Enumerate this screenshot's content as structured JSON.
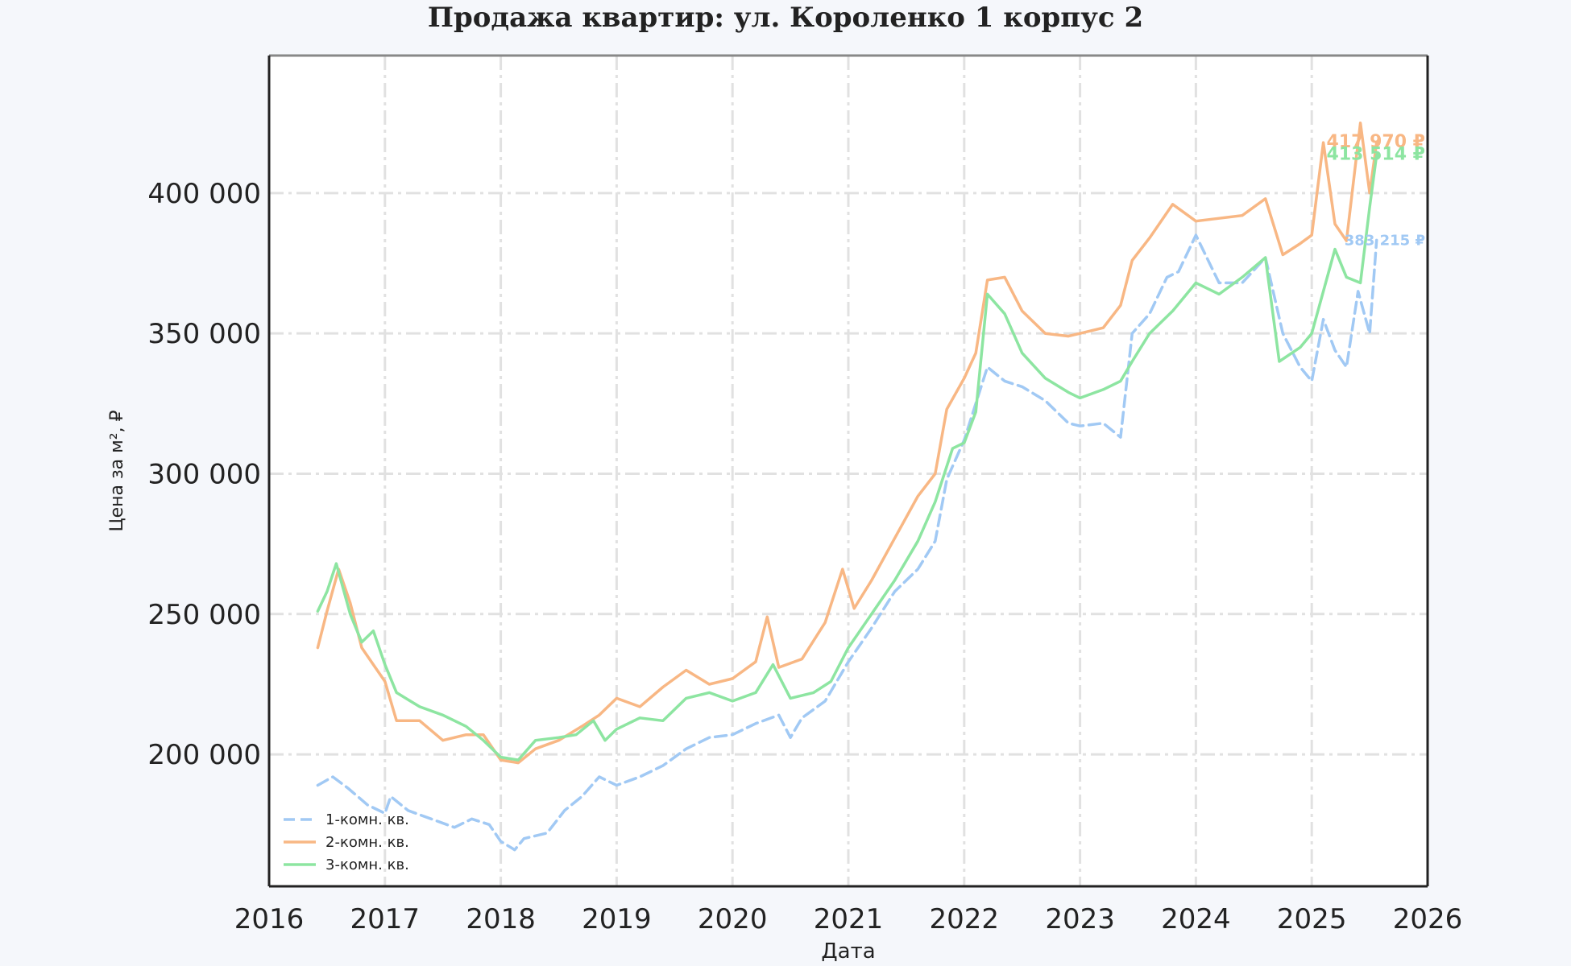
{
  "chart_data": {
    "type": "line",
    "title": "Продажа квартир: ул. Короленко 1 корпус 2",
    "xlabel": "Дата",
    "ylabel": "Цена за м², ₽",
    "xlim": [
      2016,
      2026
    ],
    "ylim": [
      153000,
      449000
    ],
    "x_ticks": [
      2016,
      2017,
      2018,
      2019,
      2020,
      2021,
      2022,
      2023,
      2024,
      2025,
      2026
    ],
    "y_ticks": [
      200000,
      250000,
      300000,
      350000,
      400000
    ],
    "y_tick_labels": [
      "200 000",
      "250 000",
      "300 000",
      "350 000",
      "400 000"
    ],
    "grid": true,
    "legend_position": "lower-left",
    "series": [
      {
        "name": "1-комн. кв.",
        "color": "#a1c9f4",
        "style": "dashed",
        "end_label": "383 215 ₽",
        "points": [
          [
            2016.42,
            189000
          ],
          [
            2016.55,
            192000
          ],
          [
            2016.68,
            188000
          ],
          [
            2016.85,
            182000
          ],
          [
            2017.0,
            179000
          ],
          [
            2017.05,
            185000
          ],
          [
            2017.2,
            180000
          ],
          [
            2017.4,
            177000
          ],
          [
            2017.6,
            174000
          ],
          [
            2017.75,
            177000
          ],
          [
            2017.9,
            175000
          ],
          [
            2018.0,
            169000
          ],
          [
            2018.12,
            166000
          ],
          [
            2018.2,
            170000
          ],
          [
            2018.4,
            172000
          ],
          [
            2018.55,
            180000
          ],
          [
            2018.7,
            185000
          ],
          [
            2018.85,
            192000
          ],
          [
            2019.0,
            189000
          ],
          [
            2019.2,
            192000
          ],
          [
            2019.4,
            196000
          ],
          [
            2019.6,
            202000
          ],
          [
            2019.8,
            206000
          ],
          [
            2020.0,
            207000
          ],
          [
            2020.2,
            211000
          ],
          [
            2020.4,
            214000
          ],
          [
            2020.5,
            206000
          ],
          [
            2020.6,
            213000
          ],
          [
            2020.8,
            219000
          ],
          [
            2021.0,
            233000
          ],
          [
            2021.2,
            245000
          ],
          [
            2021.4,
            258000
          ],
          [
            2021.6,
            266000
          ],
          [
            2021.75,
            276000
          ],
          [
            2021.85,
            298000
          ],
          [
            2022.0,
            312000
          ],
          [
            2022.1,
            325000
          ],
          [
            2022.2,
            338000
          ],
          [
            2022.35,
            333000
          ],
          [
            2022.5,
            331000
          ],
          [
            2022.7,
            326000
          ],
          [
            2022.9,
            318000
          ],
          [
            2023.0,
            317000
          ],
          [
            2023.2,
            318000
          ],
          [
            2023.35,
            313000
          ],
          [
            2023.45,
            350000
          ],
          [
            2023.6,
            357000
          ],
          [
            2023.75,
            370000
          ],
          [
            2023.85,
            372000
          ],
          [
            2024.0,
            385000
          ],
          [
            2024.2,
            368000
          ],
          [
            2024.4,
            368000
          ],
          [
            2024.6,
            377000
          ],
          [
            2024.75,
            350000
          ],
          [
            2024.9,
            338000
          ],
          [
            2025.0,
            333000
          ],
          [
            2025.1,
            355000
          ],
          [
            2025.2,
            344000
          ],
          [
            2025.3,
            338000
          ],
          [
            2025.4,
            365000
          ],
          [
            2025.5,
            350000
          ],
          [
            2025.56,
            383215
          ]
        ]
      },
      {
        "name": "2-комн. кв.",
        "color": "#f8b784",
        "style": "solid",
        "end_label": "417 970 ₽",
        "points": [
          [
            2016.42,
            238000
          ],
          [
            2016.5,
            251000
          ],
          [
            2016.6,
            266000
          ],
          [
            2016.7,
            254000
          ],
          [
            2016.8,
            238000
          ],
          [
            2016.9,
            232000
          ],
          [
            2017.0,
            226000
          ],
          [
            2017.1,
            212000
          ],
          [
            2017.3,
            212000
          ],
          [
            2017.5,
            205000
          ],
          [
            2017.7,
            207000
          ],
          [
            2017.85,
            207000
          ],
          [
            2018.0,
            198000
          ],
          [
            2018.15,
            197000
          ],
          [
            2018.3,
            202000
          ],
          [
            2018.5,
            205000
          ],
          [
            2018.7,
            210000
          ],
          [
            2018.85,
            214000
          ],
          [
            2019.0,
            220000
          ],
          [
            2019.2,
            217000
          ],
          [
            2019.4,
            224000
          ],
          [
            2019.6,
            230000
          ],
          [
            2019.8,
            225000
          ],
          [
            2020.0,
            227000
          ],
          [
            2020.2,
            233000
          ],
          [
            2020.3,
            249000
          ],
          [
            2020.4,
            231000
          ],
          [
            2020.6,
            234000
          ],
          [
            2020.8,
            247000
          ],
          [
            2020.95,
            266000
          ],
          [
            2021.05,
            252000
          ],
          [
            2021.2,
            262000
          ],
          [
            2021.4,
            277000
          ],
          [
            2021.6,
            292000
          ],
          [
            2021.75,
            300000
          ],
          [
            2021.85,
            323000
          ],
          [
            2022.0,
            334000
          ],
          [
            2022.1,
            343000
          ],
          [
            2022.2,
            369000
          ],
          [
            2022.35,
            370000
          ],
          [
            2022.5,
            358000
          ],
          [
            2022.7,
            350000
          ],
          [
            2022.9,
            349000
          ],
          [
            2023.0,
            350000
          ],
          [
            2023.2,
            352000
          ],
          [
            2023.35,
            360000
          ],
          [
            2023.45,
            376000
          ],
          [
            2023.6,
            384000
          ],
          [
            2023.8,
            396000
          ],
          [
            2024.0,
            390000
          ],
          [
            2024.2,
            391000
          ],
          [
            2024.4,
            392000
          ],
          [
            2024.6,
            398000
          ],
          [
            2024.75,
            378000
          ],
          [
            2024.9,
            382000
          ],
          [
            2025.0,
            385000
          ],
          [
            2025.1,
            418000
          ],
          [
            2025.2,
            389000
          ],
          [
            2025.3,
            383000
          ],
          [
            2025.42,
            425000
          ],
          [
            2025.5,
            400000
          ],
          [
            2025.56,
            417970
          ]
        ]
      },
      {
        "name": "3-комн. кв.",
        "color": "#8de5a1",
        "style": "solid",
        "end_label": "413 514 ₽",
        "points": [
          [
            2016.42,
            251000
          ],
          [
            2016.5,
            258000
          ],
          [
            2016.58,
            268000
          ],
          [
            2016.7,
            250000
          ],
          [
            2016.8,
            240000
          ],
          [
            2016.9,
            244000
          ],
          [
            2017.0,
            232000
          ],
          [
            2017.1,
            222000
          ],
          [
            2017.3,
            217000
          ],
          [
            2017.5,
            214000
          ],
          [
            2017.7,
            210000
          ],
          [
            2017.85,
            205000
          ],
          [
            2018.0,
            199000
          ],
          [
            2018.15,
            198000
          ],
          [
            2018.3,
            205000
          ],
          [
            2018.5,
            206000
          ],
          [
            2018.65,
            207000
          ],
          [
            2018.8,
            212000
          ],
          [
            2018.9,
            205000
          ],
          [
            2019.0,
            209000
          ],
          [
            2019.2,
            213000
          ],
          [
            2019.4,
            212000
          ],
          [
            2019.6,
            220000
          ],
          [
            2019.8,
            222000
          ],
          [
            2020.0,
            219000
          ],
          [
            2020.2,
            222000
          ],
          [
            2020.35,
            232000
          ],
          [
            2020.5,
            220000
          ],
          [
            2020.7,
            222000
          ],
          [
            2020.85,
            226000
          ],
          [
            2021.0,
            238000
          ],
          [
            2021.2,
            250000
          ],
          [
            2021.4,
            262000
          ],
          [
            2021.6,
            276000
          ],
          [
            2021.75,
            290000
          ],
          [
            2021.9,
            309000
          ],
          [
            2022.0,
            311000
          ],
          [
            2022.1,
            322000
          ],
          [
            2022.2,
            364000
          ],
          [
            2022.35,
            357000
          ],
          [
            2022.5,
            343000
          ],
          [
            2022.7,
            334000
          ],
          [
            2022.9,
            329000
          ],
          [
            2023.0,
            327000
          ],
          [
            2023.2,
            330000
          ],
          [
            2023.35,
            333000
          ],
          [
            2023.45,
            340000
          ],
          [
            2023.6,
            350000
          ],
          [
            2023.8,
            358000
          ],
          [
            2024.0,
            368000
          ],
          [
            2024.2,
            364000
          ],
          [
            2024.4,
            370000
          ],
          [
            2024.6,
            377000
          ],
          [
            2024.72,
            340000
          ],
          [
            2024.9,
            345000
          ],
          [
            2025.0,
            350000
          ],
          [
            2025.1,
            365000
          ],
          [
            2025.2,
            380000
          ],
          [
            2025.3,
            370000
          ],
          [
            2025.42,
            368000
          ],
          [
            2025.5,
            395000
          ],
          [
            2025.56,
            413514
          ]
        ]
      }
    ]
  }
}
